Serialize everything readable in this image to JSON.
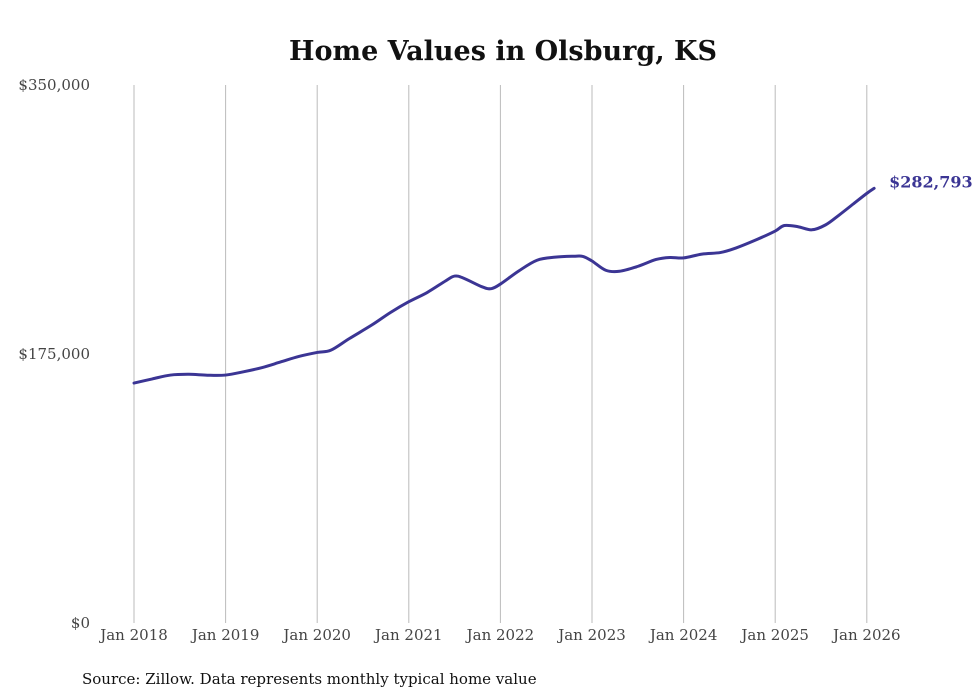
{
  "chart_data": {
    "type": "line",
    "title": "Home Values in Olsburg, KS",
    "xlabel": "",
    "ylabel": "",
    "ylim": [
      0,
      350000
    ],
    "y_ticks": [
      0,
      175000,
      350000
    ],
    "y_tick_labels": [
      "$0",
      "$175,000",
      "$350,000"
    ],
    "x_tick_values": [
      2018,
      2019,
      2020,
      2021,
      2022,
      2023,
      2024,
      2025,
      2026
    ],
    "x_tick_labels": [
      "Jan 2018",
      "Jan 2019",
      "Jan 2020",
      "Jan 2021",
      "Jan 2022",
      "Jan 2023",
      "Jan 2024",
      "Jan 2025",
      "Jan 2026"
    ],
    "grid": "vertical",
    "series": [
      {
        "name": "Typical home value",
        "color": "#3b3594",
        "x": [
          2018.0,
          2018.2,
          2018.4,
          2018.6,
          2018.8,
          2019.0,
          2019.2,
          2019.4,
          2019.6,
          2019.8,
          2020.0,
          2020.15,
          2020.35,
          2020.6,
          2020.8,
          2021.0,
          2021.2,
          2021.4,
          2021.5,
          2021.6,
          2021.8,
          2021.9,
          2022.0,
          2022.2,
          2022.4,
          2022.6,
          2022.8,
          2022.9,
          2023.0,
          2023.15,
          2023.3,
          2023.5,
          2023.7,
          2023.85,
          2024.0,
          2024.2,
          2024.4,
          2024.55,
          2024.8,
          2025.0,
          2025.1,
          2025.25,
          2025.4,
          2025.55,
          2025.7,
          2025.85,
          2026.0,
          2026.08
        ],
        "values": [
          156100,
          158800,
          161300,
          161800,
          161200,
          161300,
          163500,
          166200,
          169800,
          173400,
          176000,
          177500,
          185000,
          194000,
          202000,
          209000,
          215000,
          222500,
          225700,
          224300,
          218700,
          217500,
          220500,
          229000,
          236000,
          238000,
          238600,
          238500,
          235500,
          229500,
          228800,
          232000,
          236500,
          237800,
          237500,
          240000,
          241000,
          243500,
          249500,
          255000,
          258600,
          257800,
          255800,
          259000,
          265500,
          272500,
          279500,
          282793
        ]
      }
    ],
    "annotations": [
      "$282,793"
    ],
    "source": "Source: Zillow. Data represents monthly typical home value"
  }
}
